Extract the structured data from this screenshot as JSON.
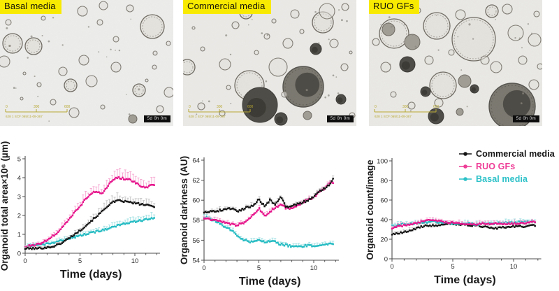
{
  "figure": {
    "label_bg": "#f8ea00",
    "panels": [
      {
        "label": "Basal media",
        "timestamp": "5d 0h 0m",
        "scale_ticks": [
          "0",
          "300",
          "600"
        ],
        "scale_caption": "628 1 SCF 065/11-09-367"
      },
      {
        "label": "Commercial media",
        "timestamp": "5d 0h 0m",
        "scale_ticks": [
          "0",
          "300",
          "600"
        ],
        "scale_caption": "628 1 SCF 065/11-09-367"
      },
      {
        "label": "RUO GFs",
        "timestamp": "5d 0h 0m",
        "scale_ticks": [
          "0",
          "300",
          "600"
        ],
        "scale_caption": "628 1 SCF 065/11-09-367"
      }
    ]
  },
  "legend": {
    "position": "top-right",
    "items": [
      {
        "label": "Commercial media",
        "color": "#141414"
      },
      {
        "label": "RUO GFs",
        "color": "#ee3d97"
      },
      {
        "label": "Basal media",
        "color": "#2cc1c8"
      }
    ]
  },
  "chart_data": [
    {
      "type": "line",
      "title": "",
      "xlabel": "Time (days)",
      "ylabel": "Organoid total area×10⁶ (µm)",
      "xlim": [
        0,
        12
      ],
      "ylim": [
        0,
        5
      ],
      "xticks": [
        0,
        5,
        10
      ],
      "yticks": [
        0,
        1,
        2,
        3,
        4,
        5
      ],
      "grid": false,
      "x": [
        0,
        0.5,
        1,
        1.5,
        2,
        2.5,
        3,
        3.5,
        4,
        4.5,
        5,
        5.5,
        6,
        6.5,
        7,
        7.5,
        8,
        8.5,
        9,
        9.5,
        10,
        10.5,
        11,
        11.5,
        12
      ],
      "series": [
        {
          "name": "Commercial media",
          "color": "#161616",
          "ebar_color": "#c2c2c2",
          "values": [
            0.25,
            0.25,
            0.25,
            0.28,
            0.3,
            0.35,
            0.45,
            0.6,
            0.8,
            1.0,
            1.2,
            1.45,
            1.7,
            1.95,
            2.2,
            2.5,
            2.7,
            2.78,
            2.75,
            2.7,
            2.65,
            2.6,
            2.55,
            2.5,
            2.45
          ]
        },
        {
          "name": "RUO GFs",
          "color": "#e6158c",
          "ebar_color": "#f6a4cf",
          "values": [
            0.35,
            0.4,
            0.45,
            0.55,
            0.7,
            0.9,
            1.1,
            1.45,
            1.8,
            2.15,
            2.5,
            2.85,
            3.15,
            3.3,
            3.15,
            3.55,
            3.9,
            4.0,
            3.95,
            3.9,
            3.75,
            3.55,
            3.45,
            3.65,
            3.6
          ]
        },
        {
          "name": "Basal media",
          "color": "#27bcc3",
          "ebar_color": "#9edfe2",
          "values": [
            0.35,
            0.4,
            0.42,
            0.45,
            0.5,
            0.55,
            0.62,
            0.7,
            0.78,
            0.85,
            0.95,
            1.0,
            1.08,
            1.15,
            1.22,
            1.3,
            1.4,
            1.48,
            1.55,
            1.62,
            1.68,
            1.73,
            1.78,
            1.84,
            1.9
          ]
        }
      ]
    },
    {
      "type": "line",
      "title": "",
      "xlabel": "Time (days)",
      "ylabel": "Organoid darkness (AU)",
      "xlim": [
        0,
        12
      ],
      "ylim": [
        54,
        64
      ],
      "xticks": [
        0,
        5,
        10
      ],
      "yticks": [
        54,
        56,
        58,
        60,
        62,
        64
      ],
      "grid": false,
      "x": [
        0,
        0.5,
        1,
        1.5,
        2,
        2.5,
        3,
        3.5,
        4,
        4.5,
        5,
        5.5,
        6,
        6.5,
        7,
        7.5,
        8,
        8.5,
        9,
        9.5,
        10,
        10.5,
        11,
        11.5,
        12
      ],
      "series": [
        {
          "name": "Commercial media",
          "color": "#161616",
          "ebar_color": "#c2c2c2",
          "values": [
            58.8,
            58.9,
            58.9,
            59.0,
            59.1,
            59.2,
            58.9,
            59.1,
            59.3,
            59.5,
            60.1,
            59.4,
            60.0,
            59.6,
            60.3,
            59.3,
            59.5,
            59.6,
            59.8,
            60.0,
            60.3,
            60.9,
            61.2,
            61.6,
            62.6
          ]
        },
        {
          "name": "RUO GFs",
          "color": "#e6158c",
          "ebar_color": "#f6a4cf",
          "values": [
            58.2,
            58.1,
            58.0,
            57.9,
            57.7,
            57.6,
            57.5,
            57.7,
            58.0,
            58.5,
            59.2,
            58.4,
            58.8,
            59.3,
            59.6,
            59.2,
            59.2,
            59.4,
            59.8,
            60.1,
            60.3,
            60.8,
            61.2,
            61.9,
            61.4
          ]
        },
        {
          "name": "Basal media",
          "color": "#27bcc3",
          "ebar_color": "#9edfe2",
          "values": [
            58.3,
            58.2,
            57.9,
            57.6,
            57.3,
            57.0,
            56.5,
            56.1,
            55.9,
            55.8,
            56.1,
            55.8,
            55.9,
            55.8,
            55.6,
            55.5,
            55.4,
            55.3,
            55.4,
            55.5,
            55.4,
            55.5,
            55.6,
            55.6,
            55.8
          ]
        }
      ]
    },
    {
      "type": "line",
      "title": "",
      "xlabel": "Time (days)",
      "ylabel": "Organoid count/image",
      "xlim": [
        0,
        12
      ],
      "ylim": [
        0,
        100
      ],
      "xticks": [
        0,
        5,
        10
      ],
      "yticks": [
        0,
        20,
        40,
        60,
        80,
        100
      ],
      "grid": false,
      "legend_position": "top-right",
      "x": [
        0,
        0.5,
        1,
        1.5,
        2,
        2.5,
        3,
        3.5,
        4,
        4.5,
        5,
        5.5,
        6,
        6.5,
        7,
        7.5,
        8,
        8.5,
        9,
        9.5,
        10,
        10.5,
        11,
        11.5,
        12
      ],
      "series": [
        {
          "name": "Commercial media",
          "color": "#161616",
          "ebar_color": "#c2c2c2",
          "values": [
            25,
            26,
            27,
            29,
            31,
            33,
            34,
            34,
            35,
            36,
            36,
            35,
            35,
            34,
            34,
            33,
            32,
            31,
            32,
            32,
            33,
            33,
            33,
            34,
            34
          ]
        },
        {
          "name": "RUO GFs",
          "color": "#e6158c",
          "ebar_color": "#f6a4cf",
          "values": [
            31,
            33,
            34,
            35,
            36,
            38,
            39,
            40,
            38,
            37,
            37,
            36,
            36,
            36,
            35,
            36,
            35,
            36,
            36,
            36,
            36,
            36,
            36,
            38,
            37
          ]
        },
        {
          "name": "Basal media",
          "color": "#27bcc3",
          "ebar_color": "#9edfe2",
          "values": [
            34,
            35,
            36,
            36,
            36,
            37,
            37,
            38,
            37,
            37,
            36,
            36,
            36,
            36,
            35,
            36,
            36,
            36,
            37,
            37,
            37,
            38,
            38,
            38,
            37
          ]
        }
      ]
    }
  ]
}
